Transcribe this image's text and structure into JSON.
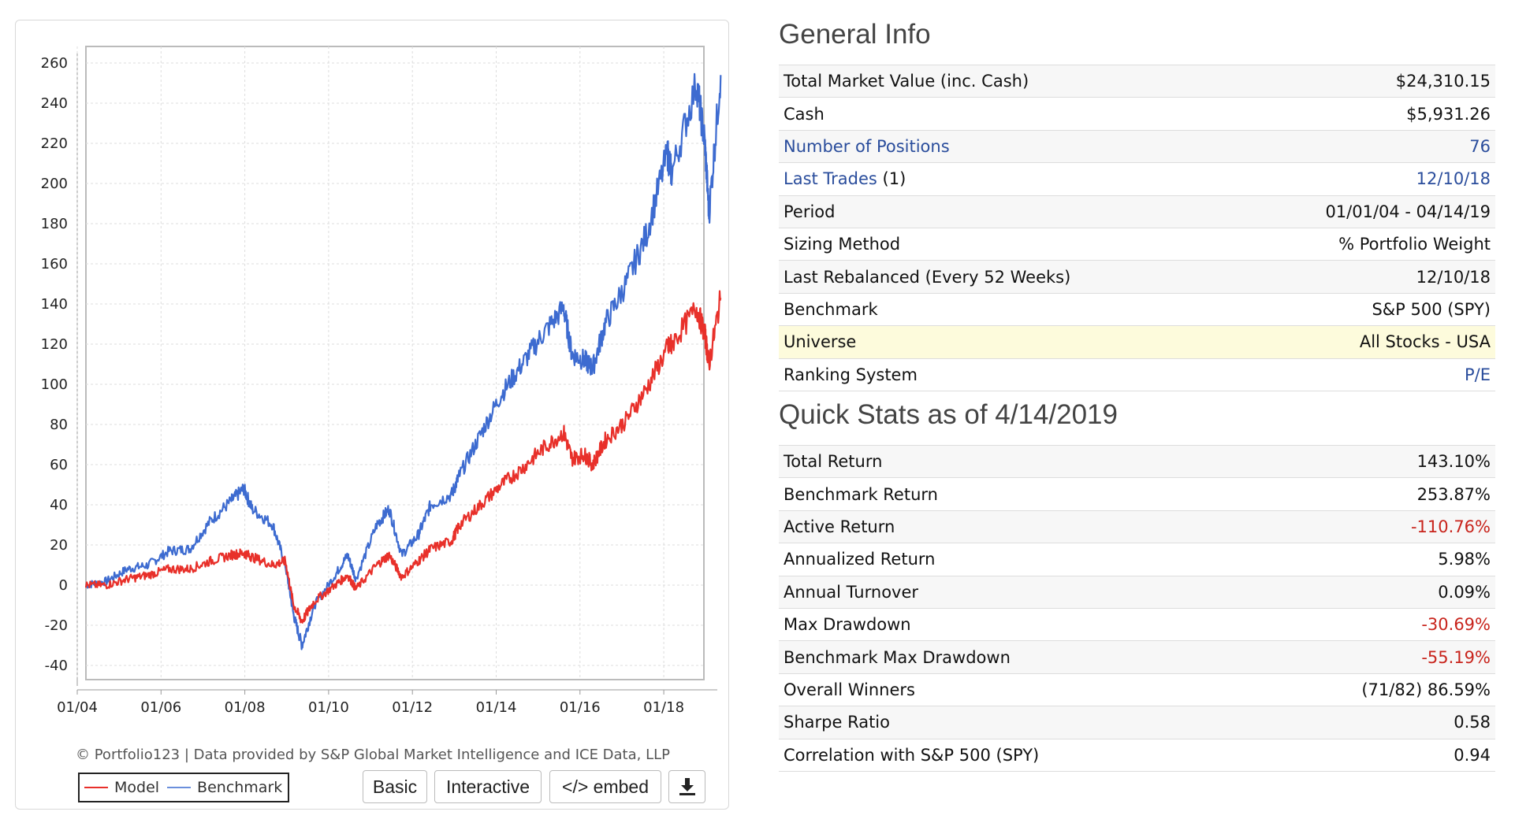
{
  "chart_data": {
    "type": "line",
    "title": "",
    "xlabel": "",
    "ylabel": "",
    "ylim": [
      -40,
      260
    ],
    "yticks": [
      "260",
      "240",
      "220",
      "200",
      "180",
      "160",
      "140",
      "120",
      "100",
      "80",
      "60",
      "40",
      "20",
      "0",
      "-20",
      "-40"
    ],
    "xticks": [
      "01/04",
      "01/06",
      "01/08",
      "01/10",
      "01/12",
      "01/14",
      "01/16",
      "01/18"
    ],
    "grid": true,
    "legend_position": "bottom-left",
    "series": [
      {
        "name": "Model",
        "color": "#e8302a",
        "x": [
          2004.0,
          2004.5,
          2005.0,
          2005.5,
          2006.0,
          2006.5,
          2007.0,
          2007.5,
          2007.8,
          2008.0,
          2008.5,
          2008.8,
          2009.0,
          2009.2,
          2009.5,
          2010.0,
          2010.3,
          2010.5,
          2011.0,
          2011.3,
          2011.6,
          2012.0,
          2012.3,
          2012.8,
          2013.0,
          2013.5,
          2014.0,
          2014.5,
          2015.0,
          2015.5,
          2015.7,
          2016.0,
          2016.2,
          2016.5,
          2017.0,
          2017.5,
          2018.0,
          2018.1,
          2018.7,
          2018.9,
          2019.0,
          2019.28
        ],
        "values": [
          0,
          0,
          3,
          5,
          8,
          8,
          12,
          15,
          16,
          14,
          10,
          12,
          -10,
          -18,
          -8,
          0,
          5,
          -2,
          10,
          15,
          4,
          12,
          18,
          22,
          30,
          40,
          50,
          58,
          68,
          76,
          63,
          65,
          60,
          72,
          82,
          98,
          118,
          120,
          138,
          125,
          110,
          143
        ]
      },
      {
        "name": "Benchmark",
        "color": "#3d6bd0",
        "x": [
          2004.0,
          2004.5,
          2005.0,
          2005.5,
          2006.0,
          2006.5,
          2007.0,
          2007.5,
          2007.8,
          2008.0,
          2008.5,
          2008.8,
          2009.0,
          2009.2,
          2009.5,
          2010.0,
          2010.3,
          2010.5,
          2011.0,
          2011.3,
          2011.6,
          2012.0,
          2012.3,
          2012.8,
          2013.0,
          2013.5,
          2014.0,
          2014.5,
          2015.0,
          2015.5,
          2015.7,
          2016.0,
          2016.2,
          2016.5,
          2017.0,
          2017.5,
          2018.0,
          2018.1,
          2018.7,
          2018.9,
          2019.0,
          2019.28
        ],
        "values": [
          0,
          2,
          8,
          10,
          17,
          18,
          32,
          42,
          48,
          38,
          30,
          10,
          -15,
          -30,
          -10,
          5,
          15,
          3,
          30,
          38,
          15,
          25,
          40,
          45,
          55,
          75,
          95,
          110,
          125,
          138,
          115,
          112,
          108,
          130,
          150,
          175,
          215,
          205,
          250,
          220,
          185,
          254
        ]
      }
    ]
  },
  "chart_footer": {
    "credit": "© Portfolio123 | Data provided by S&P Global Market Intelligence and ICE Data, LLP",
    "legend_model": "Model",
    "legend_benchmark": "Benchmark",
    "buttons": {
      "basic": "Basic",
      "interactive": "Interactive",
      "embed": "</> embed"
    },
    "download_icon": "download-icon"
  },
  "general_info": {
    "title": "General Info",
    "rows": [
      {
        "label": "Total Market Value (inc. Cash)",
        "value": "$24,310.15"
      },
      {
        "label": "Cash",
        "value": "$5,931.26"
      },
      {
        "label": "Number of Positions",
        "value": "76"
      },
      {
        "label": "Last Trades",
        "suffix": " (1)",
        "value": "12/10/18"
      },
      {
        "label": "Period",
        "value": "01/01/04 - 04/14/19"
      },
      {
        "label": "Sizing Method",
        "value": "% Portfolio Weight"
      },
      {
        "label": "Last Rebalanced (Every 52 Weeks)",
        "value": "12/10/18"
      },
      {
        "label": "Benchmark",
        "value": "S&P 500 (SPY)"
      },
      {
        "label": "Universe",
        "value": "All Stocks - USA"
      },
      {
        "label": "Ranking System",
        "value": "P/E"
      }
    ]
  },
  "quick_stats": {
    "title": "Quick Stats as of 4/14/2019",
    "rows": [
      {
        "label": "Total Return",
        "value": "143.10%"
      },
      {
        "label": "Benchmark Return",
        "value": "253.87%"
      },
      {
        "label": "Active Return",
        "value": "-110.76%"
      },
      {
        "label": "Annualized Return",
        "value": "5.98%"
      },
      {
        "label": "Annual Turnover",
        "value": "0.09%"
      },
      {
        "label": "Max Drawdown",
        "value": "-30.69%"
      },
      {
        "label": "Benchmark Max Drawdown",
        "value": "-55.19%"
      },
      {
        "label": "Overall Winners",
        "value": "(71/82) 86.59%"
      },
      {
        "label": "Sharpe Ratio",
        "value": "0.58"
      },
      {
        "label": "Correlation with S&P 500 (SPY)",
        "value": "0.94"
      }
    ]
  },
  "colors": {
    "link": "#2a4d9c",
    "negative": "#c8241c",
    "highlight_row": "#fdfbdc"
  }
}
